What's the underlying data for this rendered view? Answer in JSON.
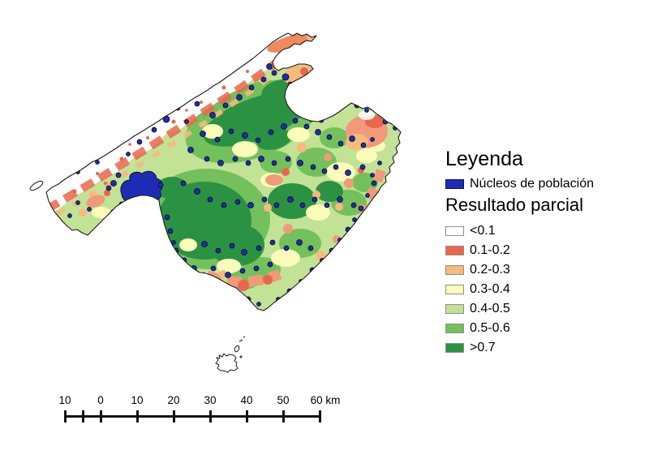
{
  "legend": {
    "title": "Leyenda",
    "nucleos_label": "Núcleos de población",
    "nucleos_color": "#1e2cb4",
    "subtitle": "Resultado parcial",
    "classes": [
      {
        "label": "<0.1",
        "color": "#ffffff"
      },
      {
        "label": "0.1-0.2",
        "color": "#e9674c"
      },
      {
        "label": "0.2-0.3",
        "color": "#f6b97e"
      },
      {
        "label": "0.3-0.4",
        "color": "#fbfcba"
      },
      {
        "label": "0.4-0.5",
        "color": "#c2e295"
      },
      {
        "label": "0.5-0.6",
        "color": "#74c05c"
      },
      {
        "label": ">0.7",
        "color": "#2b9243"
      }
    ]
  },
  "scalebar": {
    "labels": [
      "10",
      "0",
      "10",
      "20",
      "30",
      "40",
      "50",
      "60 km"
    ]
  }
}
